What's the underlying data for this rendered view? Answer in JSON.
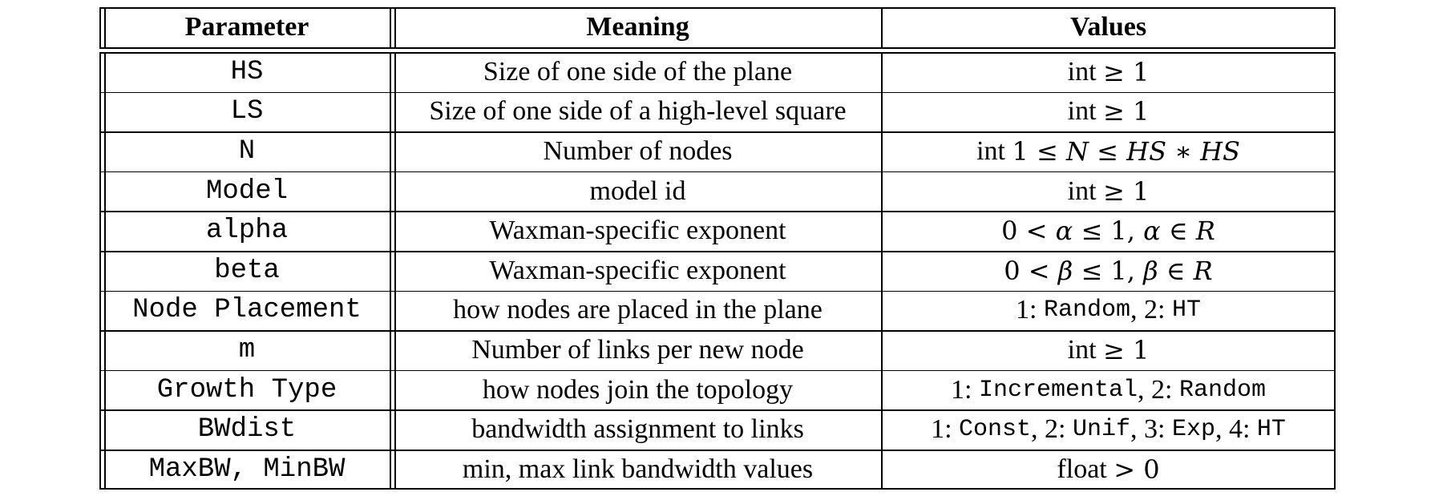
{
  "table": {
    "headers": {
      "parameter": "Parameter",
      "meaning": "Meaning",
      "values": "Values"
    },
    "rows": [
      {
        "parameter": "HS",
        "meaning": "Size of one side of the plane",
        "values": [
          {
            "t": "text",
            "v": "int "
          },
          {
            "t": "math-up",
            "v": "≥ 1"
          }
        ]
      },
      {
        "parameter": "LS",
        "meaning": "Size of one side of a high-level square",
        "values": [
          {
            "t": "text",
            "v": "int "
          },
          {
            "t": "math-up",
            "v": "≥ 1"
          }
        ]
      },
      {
        "parameter": "N",
        "meaning": "Number of nodes",
        "values": [
          {
            "t": "text",
            "v": "int "
          },
          {
            "t": "math-up",
            "v": "1 ≤ "
          },
          {
            "t": "math",
            "v": "N"
          },
          {
            "t": "math-up",
            "v": " ≤ "
          },
          {
            "t": "math",
            "v": "HS"
          },
          {
            "t": "math-up",
            "v": " ∗ "
          },
          {
            "t": "math",
            "v": "HS"
          }
        ]
      },
      {
        "parameter": "Model",
        "meaning": "model id",
        "values": [
          {
            "t": "text",
            "v": "int "
          },
          {
            "t": "math-up",
            "v": "≥ 1"
          }
        ]
      },
      {
        "parameter": "alpha",
        "meaning": "Waxman-specific exponent",
        "values": [
          {
            "t": "math-up",
            "v": "0 < "
          },
          {
            "t": "math",
            "v": "α"
          },
          {
            "t": "math-up",
            "v": " ≤ 1, "
          },
          {
            "t": "math",
            "v": "α"
          },
          {
            "t": "math-up",
            "v": " ∈ "
          },
          {
            "t": "math",
            "v": "R"
          }
        ]
      },
      {
        "parameter": "beta",
        "meaning": "Waxman-specific exponent",
        "values": [
          {
            "t": "math-up",
            "v": "0 < "
          },
          {
            "t": "math",
            "v": "β"
          },
          {
            "t": "math-up",
            "v": " ≤ 1, "
          },
          {
            "t": "math",
            "v": "β"
          },
          {
            "t": "math-up",
            "v": " ∈ "
          },
          {
            "t": "math",
            "v": "R"
          }
        ]
      },
      {
        "parameter": "Node Placement",
        "meaning": "how nodes are placed in the plane",
        "values": [
          {
            "t": "text",
            "v": "1: "
          },
          {
            "t": "mono",
            "v": "Random"
          },
          {
            "t": "text",
            "v": ", 2: "
          },
          {
            "t": "mono",
            "v": "HT"
          }
        ]
      },
      {
        "parameter": "m",
        "meaning": "Number of links per new node",
        "values": [
          {
            "t": "text",
            "v": "int "
          },
          {
            "t": "math-up",
            "v": "≥ 1"
          }
        ]
      },
      {
        "parameter": "Growth Type",
        "meaning": "how nodes join the topology",
        "values": [
          {
            "t": "text",
            "v": "1: "
          },
          {
            "t": "mono",
            "v": "Incremental"
          },
          {
            "t": "text",
            "v": ", 2: "
          },
          {
            "t": "mono",
            "v": "Random"
          }
        ]
      },
      {
        "parameter": "BWdist",
        "meaning": "bandwidth assignment to links",
        "values": [
          {
            "t": "text",
            "v": "1: "
          },
          {
            "t": "mono",
            "v": "Const"
          },
          {
            "t": "text",
            "v": ", 2: "
          },
          {
            "t": "mono",
            "v": "Unif"
          },
          {
            "t": "text",
            "v": ", 3: "
          },
          {
            "t": "mono",
            "v": "Exp"
          },
          {
            "t": "text",
            "v": ", 4: "
          },
          {
            "t": "mono",
            "v": "HT"
          }
        ]
      },
      {
        "parameter": "MaxBW, MinBW",
        "meaning": "min, max link bandwidth values",
        "values": [
          {
            "t": "text",
            "v": "float "
          },
          {
            "t": "math-up",
            "v": "> 0"
          }
        ]
      }
    ]
  }
}
